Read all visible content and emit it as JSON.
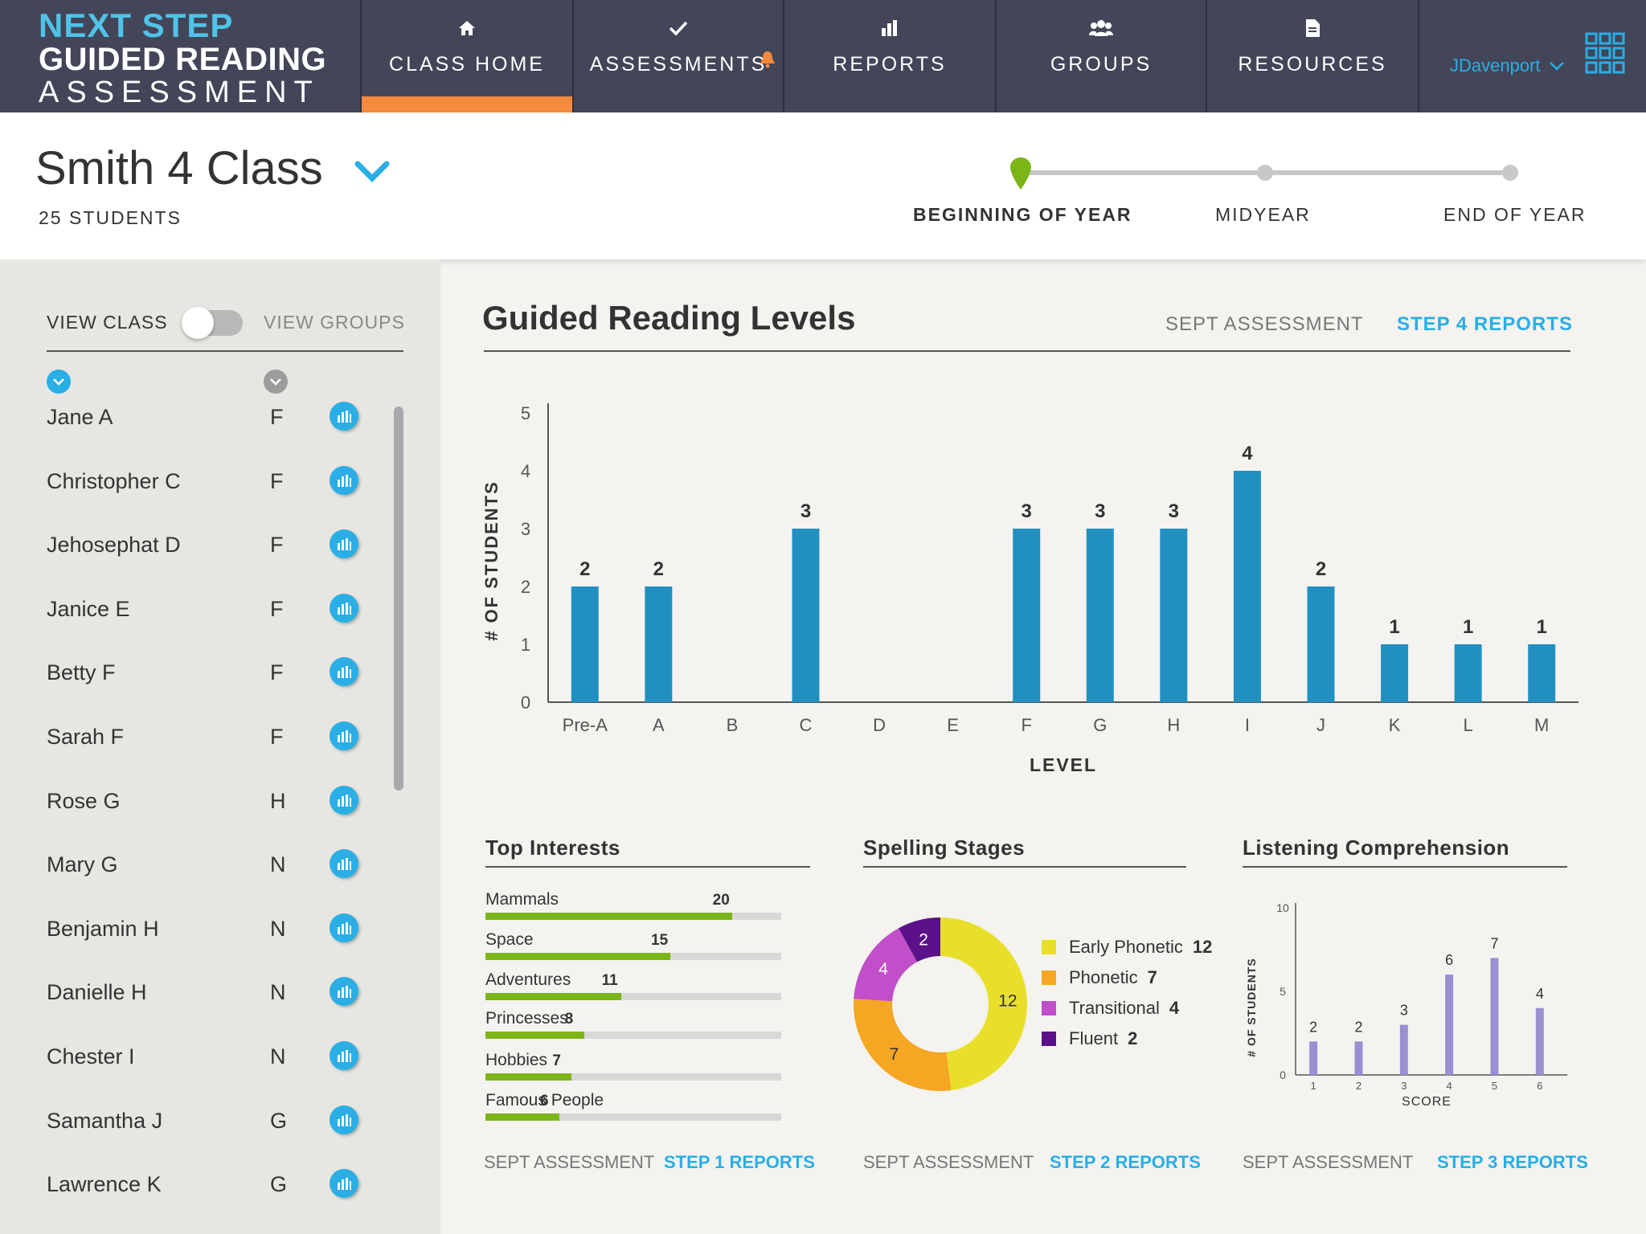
{
  "app": {
    "logo_line1": "NEXT STEP",
    "logo_line2": "GUIDED READING",
    "logo_line3": "ASSESSMENT"
  },
  "nav": {
    "tabs": [
      {
        "label": "CLASS HOME",
        "icon": "home-icon",
        "active": true
      },
      {
        "label": "ASSESSMENTS",
        "icon": "checkmark-icon",
        "active": false,
        "has_notification": true
      },
      {
        "label": "REPORTS",
        "icon": "bar-chart-icon",
        "active": false
      },
      {
        "label": "GROUPS",
        "icon": "people-icon",
        "active": false
      },
      {
        "label": "RESOURCES",
        "icon": "document-icon",
        "active": false
      }
    ],
    "user": "JDavenport",
    "apps_icon": "grid-icon"
  },
  "header": {
    "class_name": "Smith 4 Class",
    "student_count": "25 STUDENTS",
    "timeline": [
      {
        "label": "BEGINNING OF YEAR",
        "active": true
      },
      {
        "label": "MIDYEAR",
        "active": false
      },
      {
        "label": "END OF YEAR",
        "active": false
      }
    ]
  },
  "sidebar": {
    "view_class": "VIEW CLASS",
    "view_groups": "VIEW GROUPS",
    "toggle_state": "view-class",
    "students": [
      {
        "name": "Jane A",
        "level": "F"
      },
      {
        "name": "Christopher C",
        "level": "F"
      },
      {
        "name": "Jehosephat D",
        "level": "F"
      },
      {
        "name": "Janice E",
        "level": "F"
      },
      {
        "name": "Betty F",
        "level": "F"
      },
      {
        "name": "Sarah F",
        "level": "F"
      },
      {
        "name": "Rose G",
        "level": "H"
      },
      {
        "name": "Mary G",
        "level": "N"
      },
      {
        "name": "Benjamin H",
        "level": "N"
      },
      {
        "name": "Danielle H",
        "level": "N"
      },
      {
        "name": "Chester I",
        "level": "N"
      },
      {
        "name": "Samantha J",
        "level": "G"
      },
      {
        "name": "Lawrence K",
        "level": "G"
      }
    ]
  },
  "main": {
    "title": "Guided Reading Levels",
    "sept": "SEPT ASSESSMENT",
    "step": "STEP 4 REPORTS"
  },
  "sections": {
    "interests": {
      "title": "Top Interests",
      "sept": "SEPT ASSESSMENT",
      "step": "STEP 1 REPORTS"
    },
    "spelling": {
      "title": "Spelling Stages",
      "sept": "SEPT ASSESSMENT",
      "step": "STEP 2 REPORTS"
    },
    "listening": {
      "title": "Listening Comprehension",
      "sept": "SEPT ASSESSMENT",
      "step": "STEP 3 REPORTS"
    }
  },
  "colors": {
    "nav_bg": "#434558",
    "accent_orange": "#f58a3c",
    "accent_blue": "#29aee6",
    "bar_blue": "#2190c1",
    "interest_green": "#7cb518",
    "listening_purple": "#9b8fd1",
    "timeline_green": "#7cb518"
  },
  "chart_data": [
    {
      "type": "bar",
      "title": "Guided Reading Levels",
      "xlabel": "LEVEL",
      "ylabel": "# OF STUDENTS",
      "ylim": [
        0,
        5
      ],
      "yticks": [
        0,
        1,
        2,
        3,
        4,
        5
      ],
      "categories": [
        "Pre-A",
        "A",
        "B",
        "C",
        "D",
        "E",
        "F",
        "G",
        "H",
        "I",
        "J",
        "K",
        "L",
        "M"
      ],
      "values": [
        2,
        2,
        0,
        3,
        0,
        0,
        3,
        3,
        3,
        4,
        2,
        1,
        1,
        1
      ],
      "grid": false
    },
    {
      "type": "bar",
      "title": "Top Interests",
      "orientation": "horizontal",
      "categories": [
        "Mammals",
        "Space",
        "Adventures",
        "Princesses",
        "Hobbies",
        "Famous People"
      ],
      "values": [
        20,
        15,
        11,
        8,
        7,
        6
      ]
    },
    {
      "type": "pie",
      "title": "Spelling Stages",
      "donut": true,
      "categories": [
        "Early Phonetic",
        "Phonetic",
        "Transitional",
        "Fluent"
      ],
      "values": [
        12,
        7,
        4,
        2
      ],
      "colors": [
        "#e8df2a",
        "#f5a623",
        "#c04fc9",
        "#5a1189"
      ],
      "legend": "right"
    },
    {
      "type": "bar",
      "title": "Listening Comprehension",
      "xlabel": "SCORE",
      "ylabel": "# OF STUDENTS",
      "ylim": [
        0,
        10
      ],
      "yticks": [
        0,
        5,
        10
      ],
      "categories": [
        "1",
        "2",
        "3",
        "4",
        "5",
        "6"
      ],
      "values": [
        2,
        2,
        3,
        6,
        7,
        4
      ]
    }
  ]
}
